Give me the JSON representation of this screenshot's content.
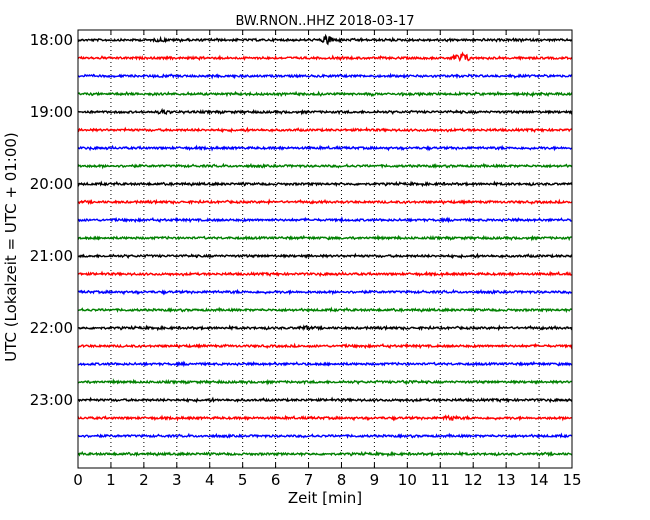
{
  "chart_data": {
    "type": "line",
    "title": "BW.RNON..HHZ 2018-03-17",
    "xlabel": "Zeit  [min]",
    "ylabel": "UTC (Lokalzeit = UTC + 01:00)",
    "xlim": [
      0,
      15
    ],
    "x_ticks": [
      "0",
      "1",
      "2",
      "3",
      "4",
      "5",
      "6",
      "7",
      "8",
      "9",
      "10",
      "11",
      "12",
      "13",
      "14",
      "15"
    ],
    "y_tick_labels": [
      "18:00",
      "19:00",
      "20:00",
      "21:00",
      "22:00",
      "23:00"
    ],
    "grid": "vertical-dotted",
    "trace_interval_minutes": 15,
    "series": [
      {
        "start": "18:00",
        "color": "#000000",
        "events": [
          {
            "t": 7.6,
            "amp": 5
          },
          {
            "t": 2.5,
            "amp": 1.2
          }
        ]
      },
      {
        "start": "18:15",
        "color": "#ff0000",
        "events": [
          {
            "t": 11.7,
            "amp": 5
          },
          {
            "t": 11.5,
            "amp": 3
          }
        ]
      },
      {
        "start": "18:30",
        "color": "#0000ff",
        "events": []
      },
      {
        "start": "18:45",
        "color": "#008000",
        "events": []
      },
      {
        "start": "19:00",
        "color": "#000000",
        "events": [
          {
            "t": 2.6,
            "amp": 1.8
          }
        ]
      },
      {
        "start": "19:15",
        "color": "#ff0000",
        "events": []
      },
      {
        "start": "19:30",
        "color": "#0000ff",
        "events": []
      },
      {
        "start": "19:45",
        "color": "#008000",
        "events": []
      },
      {
        "start": "20:00",
        "color": "#000000",
        "events": []
      },
      {
        "start": "20:15",
        "color": "#ff0000",
        "events": []
      },
      {
        "start": "20:30",
        "color": "#0000ff",
        "events": []
      },
      {
        "start": "20:45",
        "color": "#008000",
        "events": []
      },
      {
        "start": "21:00",
        "color": "#000000",
        "events": []
      },
      {
        "start": "21:15",
        "color": "#ff0000",
        "events": []
      },
      {
        "start": "21:30",
        "color": "#0000ff",
        "events": []
      },
      {
        "start": "21:45",
        "color": "#008000",
        "events": []
      },
      {
        "start": "22:00",
        "color": "#000000",
        "events": [
          {
            "t": 6.9,
            "amp": 1.5
          }
        ]
      },
      {
        "start": "22:15",
        "color": "#ff0000",
        "events": []
      },
      {
        "start": "22:30",
        "color": "#0000ff",
        "events": []
      },
      {
        "start": "22:45",
        "color": "#008000",
        "events": [
          {
            "t": 10.0,
            "amp": 1.3
          }
        ]
      },
      {
        "start": "23:00",
        "color": "#000000",
        "events": []
      },
      {
        "start": "23:15",
        "color": "#ff0000",
        "events": [
          {
            "t": 11.3,
            "amp": 2.2
          }
        ]
      },
      {
        "start": "23:30",
        "color": "#0000ff",
        "events": []
      },
      {
        "start": "23:45",
        "color": "#008000",
        "events": []
      }
    ]
  }
}
